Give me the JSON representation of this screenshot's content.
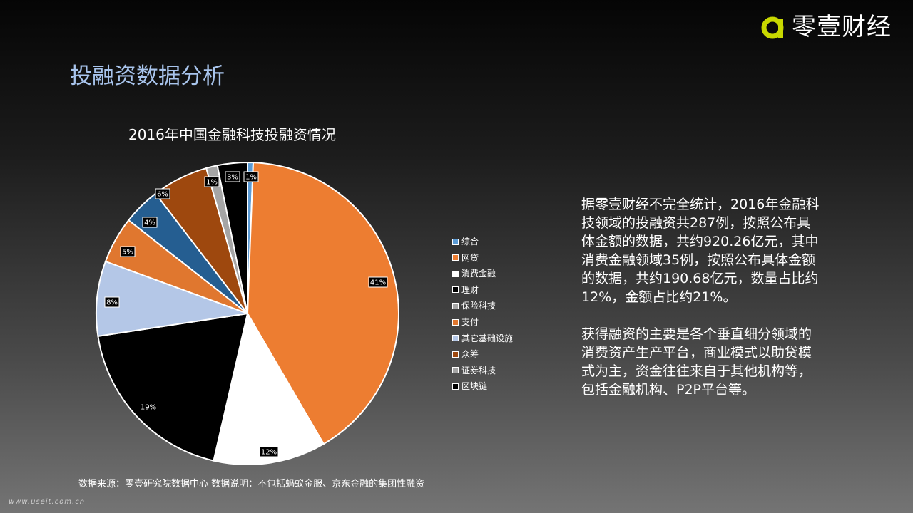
{
  "logo": {
    "text": "零壹财经",
    "accent_color": "#c8d800"
  },
  "page_title": "投融资数据分析",
  "chart_data": {
    "type": "pie",
    "title": "2016年中国金融科技投融资情况",
    "categories": [
      "综合",
      "网贷",
      "消费金融",
      "理财",
      "保险科技",
      "支付",
      "其它基础设施",
      "众筹",
      "证券科技",
      "区块链"
    ],
    "colors": [
      "#5b9bd5",
      "#ed7d31",
      "#ffffff",
      "#000000",
      "#a5a5a5",
      "#e0772f",
      "#b4c7e7",
      "#9e480e",
      "#a5a5a5",
      "#000000"
    ],
    "pie_order": [
      "综合",
      "网贷",
      "消费金融",
      "理财",
      "其它基础设施",
      "众筹",
      "保险科技",
      "支付",
      "证券科技",
      "区块链"
    ],
    "pie_colors": [
      "#5b9bd5",
      "#ed7d31",
      "#ffffff",
      "#000000",
      "#b4c7e7",
      "#e0772f",
      "#255e91",
      "#9e480e",
      "#a5a5a5",
      "#000000"
    ],
    "values": [
      0.6,
      41,
      12,
      19,
      8,
      5,
      4,
      6,
      1.2,
      3.2
    ],
    "labels": [
      "1%",
      "41%",
      "12%",
      "19%",
      "8%",
      "5%",
      "4%",
      "6%",
      "1%",
      "3%"
    ],
    "legend_position": "right"
  },
  "body_paragraphs": [
    "据零壹财经不完全统计，2016年金融科技领域的投融资共287例，按照公布具体金额的数据，共约920.26亿元，其中消费金融领域35例，按照公布具体金额的数据，共约190.68亿元，数量占比约12%，金额占比约21%。",
    "获得融资的主要是各个垂直细分领域的消费资产生产平台，商业模式以助贷模式为主，资金往往来自于其他机构等，包括金融机构、P2P平台等。"
  ],
  "source_note": "数据来源：零壹研究院数据中心  数据说明：不包括蚂蚁金服、京东金融的集团性融资",
  "watermark": "www.useit.com.cn"
}
